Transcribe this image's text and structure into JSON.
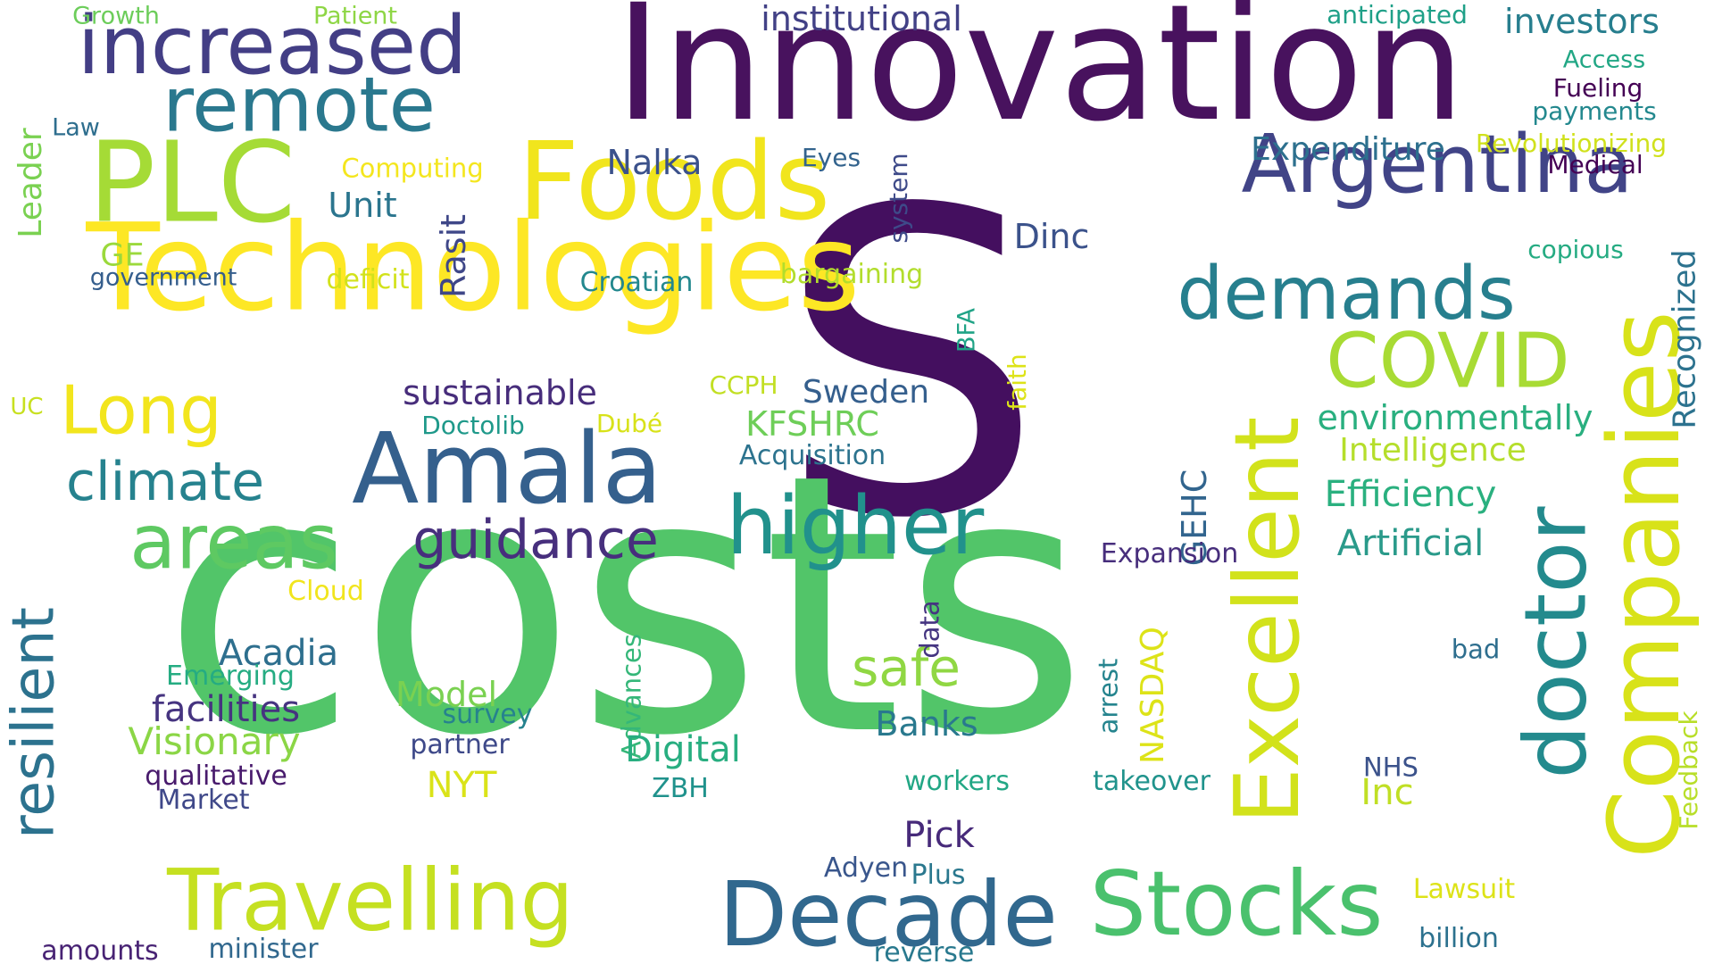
{
  "words": [
    {
      "text": "S",
      "color": "#440f5f"
    },
    {
      "text": "costs",
      "color": "#52c569"
    },
    {
      "text": "Innovation",
      "color": "#48125e"
    },
    {
      "text": "Technologies",
      "color": "#fde725"
    },
    {
      "text": "increased",
      "color": "#433e85"
    },
    {
      "text": "remote",
      "color": "#2a788e"
    },
    {
      "text": "PLC",
      "color": "#a5db36"
    },
    {
      "text": "Foods",
      "color": "#f1e51d"
    },
    {
      "text": "Argentina",
      "color": "#414487"
    },
    {
      "text": "demands",
      "color": "#277f8e"
    },
    {
      "text": "COVID",
      "color": "#a8db34"
    },
    {
      "text": "Companies",
      "color": "#d8e219"
    },
    {
      "text": "Excellent",
      "color": "#d2e21b"
    },
    {
      "text": "doctor",
      "color": "#238a8d"
    },
    {
      "text": "Amala",
      "color": "#35608d"
    },
    {
      "text": "areas",
      "color": "#5ec962"
    },
    {
      "text": "higher",
      "color": "#21918c"
    },
    {
      "text": "guidance",
      "color": "#472f7d"
    },
    {
      "text": "climate",
      "color": "#26828e"
    },
    {
      "text": "Long",
      "color": "#f2e51d"
    },
    {
      "text": "resilient",
      "color": "#2c728e"
    },
    {
      "text": "Travelling",
      "color": "#c5e021"
    },
    {
      "text": "Decade",
      "color": "#31688e"
    },
    {
      "text": "Stocks",
      "color": "#4ac16d"
    },
    {
      "text": "safe",
      "color": "#90d743"
    },
    {
      "text": "sustainable",
      "color": "#472d7b"
    },
    {
      "text": "Sweden",
      "color": "#355f8d"
    },
    {
      "text": "KFSHRC",
      "color": "#6ece58"
    },
    {
      "text": "environmentally",
      "color": "#29af7f"
    },
    {
      "text": "Intelligence",
      "color": "#b5de2b"
    },
    {
      "text": "Efficiency",
      "color": "#2ab07f"
    },
    {
      "text": "Artificial",
      "color": "#2a9a8a"
    },
    {
      "text": "Expenditure",
      "color": "#2d708e"
    },
    {
      "text": "Revolutionizing",
      "color": "#d0e11c"
    },
    {
      "text": "Medical",
      "color": "#440154"
    },
    {
      "text": "Fueling",
      "color": "#440154"
    },
    {
      "text": "payments",
      "color": "#23888e"
    },
    {
      "text": "Access",
      "color": "#22a785"
    },
    {
      "text": "investors",
      "color": "#277e8e"
    },
    {
      "text": "anticipated",
      "color": "#1fa088"
    },
    {
      "text": "institutional",
      "color": "#424186"
    },
    {
      "text": "Growth",
      "color": "#6ccd5a"
    },
    {
      "text": "Patient",
      "color": "#8ed645"
    },
    {
      "text": "Law",
      "color": "#2e6e8e"
    },
    {
      "text": "Leader",
      "color": "#7ad151"
    },
    {
      "text": "Computing",
      "color": "#f4e61e"
    },
    {
      "text": "Unit",
      "color": "#2b758e"
    },
    {
      "text": "Nalka",
      "color": "#3b518b"
    },
    {
      "text": "Eyes",
      "color": "#33638d"
    },
    {
      "text": "system",
      "color": "#3e4a89"
    },
    {
      "text": "Rasit",
      "color": "#3f4788"
    },
    {
      "text": "Dinc",
      "color": "#3b528b"
    },
    {
      "text": "GE",
      "color": "#9bd93c"
    },
    {
      "text": "government",
      "color": "#355e8d"
    },
    {
      "text": "deficit",
      "color": "#d2e21b"
    },
    {
      "text": "Croatian",
      "color": "#23888e"
    },
    {
      "text": "bargaining",
      "color": "#b2dd2d"
    },
    {
      "text": "copious",
      "color": "#25ab82"
    },
    {
      "text": "Recognized",
      "color": "#2c728e"
    },
    {
      "text": "BFA",
      "color": "#20a386"
    },
    {
      "text": "faith",
      "color": "#dde318"
    },
    {
      "text": "CCPH",
      "color": "#c2df23"
    },
    {
      "text": "UC",
      "color": "#c8e020"
    },
    {
      "text": "Doctolib",
      "color": "#1f998a"
    },
    {
      "text": "Dubé",
      "color": "#d8e219"
    },
    {
      "text": "Acquisition",
      "color": "#2c738e"
    },
    {
      "text": "GEHC",
      "color": "#32658e"
    },
    {
      "text": "Expansion",
      "color": "#472e7c"
    },
    {
      "text": "Cloud",
      "color": "#f1e51d"
    },
    {
      "text": "data",
      "color": "#453581"
    },
    {
      "text": "Advances",
      "color": "#35b779"
    },
    {
      "text": "Acadia",
      "color": "#2e6f8e"
    },
    {
      "text": "Emerging",
      "color": "#25ac82"
    },
    {
      "text": "facilities",
      "color": "#463480"
    },
    {
      "text": "Visionary",
      "color": "#8bd646"
    },
    {
      "text": "Model",
      "color": "#7ad151"
    },
    {
      "text": "survey",
      "color": "#26828e"
    },
    {
      "text": "partner",
      "color": "#3e4989"
    },
    {
      "text": "qualitative",
      "color": "#481a6c"
    },
    {
      "text": "Market",
      "color": "#3f4889"
    },
    {
      "text": "NYT",
      "color": "#dae319"
    },
    {
      "text": "ZBH",
      "color": "#20928c"
    },
    {
      "text": "Digital",
      "color": "#28ae80"
    },
    {
      "text": "Banks",
      "color": "#29798e"
    },
    {
      "text": "NASDAQ",
      "color": "#dde318"
    },
    {
      "text": "arrest",
      "color": "#25848e"
    },
    {
      "text": "bad",
      "color": "#2e6e8e"
    },
    {
      "text": "Feedback",
      "color": "#b8de29"
    },
    {
      "text": "NHS",
      "color": "#3b528b"
    },
    {
      "text": "Inc",
      "color": "#c0df25"
    },
    {
      "text": "takeover",
      "color": "#20938c"
    },
    {
      "text": "workers",
      "color": "#22a785"
    },
    {
      "text": "Pick",
      "color": "#472a7a"
    },
    {
      "text": "Adyen",
      "color": "#39568c"
    },
    {
      "text": "Plus",
      "color": "#2a788e"
    },
    {
      "text": "Lawsuit",
      "color": "#dde318"
    },
    {
      "text": "billion",
      "color": "#2c718e"
    },
    {
      "text": "reverse",
      "color": "#29798e"
    },
    {
      "text": "amounts",
      "color": "#482374"
    },
    {
      "text": "minister",
      "color": "#31688e"
    }
  ]
}
